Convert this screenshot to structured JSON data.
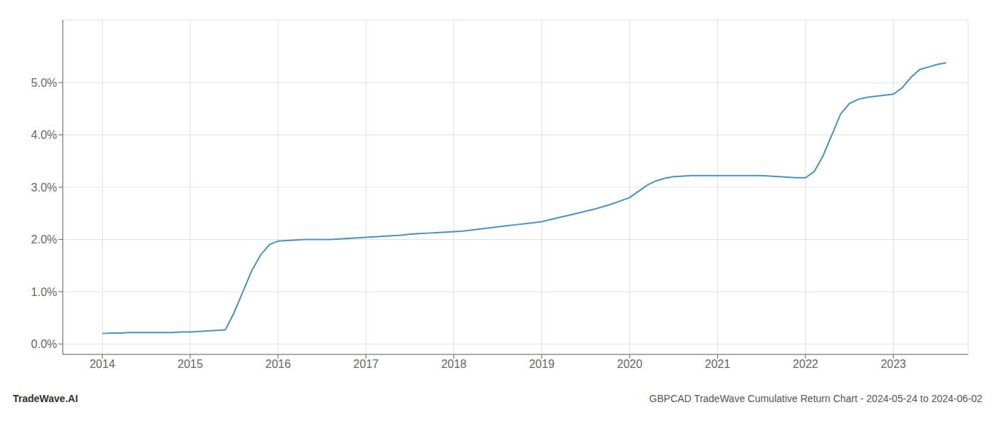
{
  "chart_data": {
    "type": "line",
    "title": "GBPCAD TradeWave Cumulative Return Chart - 2024-05-24 to 2024-06-02",
    "annotations": [
      "TradeWave.AI"
    ],
    "x": [
      2014.0,
      2014.1,
      2014.2,
      2014.3,
      2014.4,
      2014.5,
      2014.6,
      2014.7,
      2014.8,
      2014.9,
      2015.0,
      2015.1,
      2015.2,
      2015.3,
      2015.4,
      2015.5,
      2015.6,
      2015.7,
      2015.8,
      2015.9,
      2016.0,
      2016.1,
      2016.2,
      2016.3,
      2016.4,
      2016.5,
      2016.6,
      2016.7,
      2016.8,
      2016.9,
      2017.0,
      2017.1,
      2017.2,
      2017.3,
      2017.4,
      2017.5,
      2017.6,
      2017.7,
      2017.8,
      2017.9,
      2018.0,
      2018.1,
      2018.2,
      2018.3,
      2018.4,
      2018.5,
      2018.6,
      2018.7,
      2018.8,
      2018.9,
      2019.0,
      2019.1,
      2019.2,
      2019.3,
      2019.4,
      2019.5,
      2019.6,
      2019.7,
      2019.8,
      2019.9,
      2020.0,
      2020.1,
      2020.2,
      2020.3,
      2020.4,
      2020.5,
      2020.6,
      2020.7,
      2020.8,
      2020.9,
      2021.0,
      2021.1,
      2021.2,
      2021.3,
      2021.4,
      2021.5,
      2021.6,
      2021.7,
      2021.8,
      2021.9,
      2022.0,
      2022.1,
      2022.2,
      2022.3,
      2022.4,
      2022.5,
      2022.6,
      2022.7,
      2022.8,
      2022.9,
      2023.0,
      2023.1,
      2023.2,
      2023.3,
      2023.4,
      2023.5,
      2023.6
    ],
    "values": [
      0.002,
      0.0021,
      0.0021,
      0.0022,
      0.0022,
      0.0022,
      0.0022,
      0.0022,
      0.0022,
      0.0023,
      0.0023,
      0.0024,
      0.0025,
      0.0026,
      0.0027,
      0.006,
      0.01,
      0.014,
      0.017,
      0.019,
      0.0197,
      0.0198,
      0.0199,
      0.02,
      0.02,
      0.02,
      0.02,
      0.0201,
      0.0202,
      0.0203,
      0.0204,
      0.0205,
      0.0206,
      0.0207,
      0.0208,
      0.021,
      0.0211,
      0.0212,
      0.0213,
      0.0214,
      0.0215,
      0.0216,
      0.0218,
      0.022,
      0.0222,
      0.0224,
      0.0226,
      0.0228,
      0.023,
      0.0232,
      0.0234,
      0.0238,
      0.0242,
      0.0246,
      0.025,
      0.0254,
      0.0258,
      0.0263,
      0.0268,
      0.0274,
      0.028,
      0.0292,
      0.0304,
      0.0312,
      0.0317,
      0.032,
      0.0321,
      0.0322,
      0.0322,
      0.0322,
      0.0322,
      0.0322,
      0.0322,
      0.0322,
      0.0322,
      0.0322,
      0.0321,
      0.032,
      0.0319,
      0.0318,
      0.0318,
      0.033,
      0.036,
      0.04,
      0.044,
      0.046,
      0.0468,
      0.0472,
      0.0474,
      0.0476,
      0.0478,
      0.049,
      0.051,
      0.0525,
      0.053,
      0.0535,
      0.0538
    ],
    "color": "#4a90c4",
    "xlim": [
      2013.55,
      2023.85
    ],
    "xticks": [
      2014,
      2015,
      2016,
      2017,
      2018,
      2019,
      2020,
      2021,
      2022,
      2023
    ],
    "ylim": [
      -0.002,
      0.062
    ],
    "yticks": [
      {
        "value": 0.0,
        "label": "0.0%"
      },
      {
        "value": 0.01,
        "label": "1.0%"
      },
      {
        "value": 0.02,
        "label": "2.0%"
      },
      {
        "value": 0.03,
        "label": "3.0%"
      },
      {
        "value": 0.04,
        "label": "4.0%"
      },
      {
        "value": 0.05,
        "label": "5.0%"
      }
    ],
    "grid": true
  }
}
